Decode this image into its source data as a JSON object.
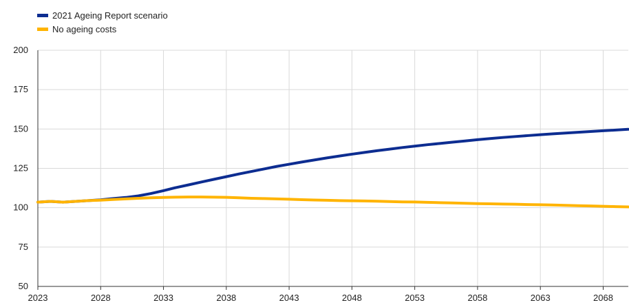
{
  "chart_data": {
    "type": "line",
    "title": "",
    "xlabel": "",
    "ylabel": "",
    "xlim": [
      2023,
      2070
    ],
    "ylim": [
      50,
      200
    ],
    "x_ticks": [
      "2023",
      "2028",
      "2033",
      "2038",
      "2043",
      "2048",
      "2053",
      "2058",
      "2063",
      "2068"
    ],
    "y_ticks": [
      "50",
      "75",
      "100",
      "125",
      "150",
      "175",
      "200"
    ],
    "grid": true,
    "legend_position": "top-left",
    "x": [
      2023,
      2024,
      2025,
      2026,
      2027,
      2028,
      2029,
      2030,
      2031,
      2032,
      2033,
      2034,
      2035,
      2036,
      2037,
      2038,
      2039,
      2040,
      2041,
      2042,
      2043,
      2044,
      2045,
      2046,
      2047,
      2048,
      2049,
      2050,
      2051,
      2052,
      2053,
      2054,
      2055,
      2056,
      2057,
      2058,
      2059,
      2060,
      2061,
      2062,
      2063,
      2064,
      2065,
      2066,
      2067,
      2068,
      2069,
      2070
    ],
    "series": [
      {
        "name": "2021 Ageing Report scenario",
        "color": "#0d2d91",
        "values": [
          103.5,
          104,
          103.5,
          104,
          104.5,
          105,
          105.8,
          106.5,
          107.5,
          109,
          110.8,
          112.8,
          114.5,
          116.3,
          118,
          119.7,
          121.4,
          123,
          124.6,
          126.2,
          127.6,
          129,
          130.3,
          131.6,
          132.8,
          134,
          135.1,
          136.2,
          137.2,
          138.2,
          139.1,
          140,
          140.8,
          141.6,
          142.4,
          143.2,
          143.9,
          144.6,
          145.2,
          145.8,
          146.4,
          146.9,
          147.4,
          147.9,
          148.4,
          148.9,
          149.3,
          149.8
        ]
      },
      {
        "name": "No ageing costs",
        "color": "#ffb400",
        "values": [
          103.5,
          104,
          103.5,
          104,
          104.5,
          104.8,
          105.2,
          105.6,
          106,
          106.3,
          106.5,
          106.7,
          106.8,
          106.8,
          106.7,
          106.6,
          106.3,
          106,
          105.8,
          105.6,
          105.4,
          105.1,
          104.9,
          104.7,
          104.5,
          104.4,
          104.3,
          104.1,
          103.9,
          103.7,
          103.6,
          103.4,
          103.2,
          103,
          102.8,
          102.6,
          102.5,
          102.3,
          102.2,
          102,
          101.9,
          101.7,
          101.5,
          101.3,
          101.1,
          100.9,
          100.7,
          100.5
        ]
      }
    ]
  }
}
